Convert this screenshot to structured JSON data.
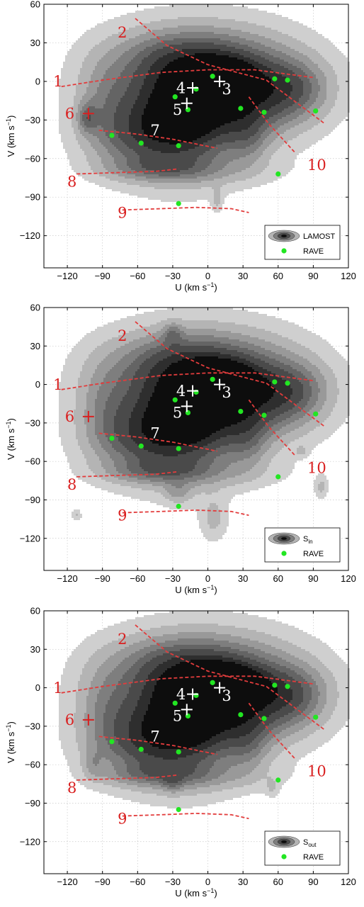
{
  "chart_data": [
    {
      "type": "contour",
      "xlabel": "U (km s",
      "xlabel_sup": "−1",
      "xlabel_close": ")",
      "ylabel": "V (km s",
      "ylabel_sup": "−1",
      "ylabel_close": ")",
      "xlim": [
        -140,
        120
      ],
      "ylim": [
        -145,
        60
      ],
      "xticks": [
        -120,
        -90,
        -60,
        -30,
        0,
        30,
        60,
        90,
        120
      ],
      "yticks": [
        -120,
        -90,
        -60,
        -30,
        0,
        30,
        60
      ],
      "grid": true,
      "legend": {
        "placement": "bottom-right",
        "contour_label": "LAMOST",
        "contour_sub": "",
        "point_label": "RAVE"
      },
      "contour_variant": 0
    },
    {
      "type": "contour",
      "xlabel": "U (km s",
      "xlabel_sup": "−1",
      "xlabel_close": ")",
      "ylabel": "V (km s",
      "ylabel_sup": "−1",
      "ylabel_close": ")",
      "xlim": [
        -140,
        120
      ],
      "ylim": [
        -145,
        60
      ],
      "xticks": [
        -120,
        -90,
        -60,
        -30,
        0,
        30,
        60,
        90,
        120
      ],
      "yticks": [
        -120,
        -90,
        -60,
        -30,
        0,
        30,
        60
      ],
      "grid": true,
      "legend": {
        "placement": "bottom-right",
        "contour_label": "S",
        "contour_sub": "in",
        "point_label": "RAVE"
      },
      "contour_variant": 1
    },
    {
      "type": "contour",
      "xlabel": "U (km s",
      "xlabel_sup": "−1",
      "xlabel_close": ")",
      "ylabel": "V (km s",
      "ylabel_sup": "−1",
      "ylabel_close": ")",
      "xlim": [
        -140,
        120
      ],
      "ylim": [
        -145,
        60
      ],
      "xticks": [
        -120,
        -90,
        -60,
        -30,
        0,
        30,
        60,
        90,
        120
      ],
      "yticks": [
        -120,
        -90,
        -60,
        -30,
        0,
        30,
        60
      ],
      "grid": true,
      "legend": {
        "placement": "bottom-right",
        "contour_label": "S",
        "contour_sub": "out",
        "point_label": "RAVE"
      },
      "contour_variant": 2
    }
  ],
  "rave_points": [
    {
      "u": -82,
      "v": -42
    },
    {
      "u": -57,
      "v": -48
    },
    {
      "u": -25,
      "v": -50
    },
    {
      "u": -28,
      "v": -12
    },
    {
      "u": -17,
      "v": -22
    },
    {
      "u": -10,
      "v": -6
    },
    {
      "u": 4,
      "v": 4
    },
    {
      "u": 28,
      "v": -21
    },
    {
      "u": 48,
      "v": -24
    },
    {
      "u": 57,
      "v": 2
    },
    {
      "u": 68,
      "v": 1
    },
    {
      "u": 92,
      "v": -23
    },
    {
      "u": 60,
      "v": -72
    },
    {
      "u": -25,
      "v": -95
    }
  ],
  "crosses": [
    {
      "u": -102,
      "v": -25
    },
    {
      "u": -18,
      "v": -17
    },
    {
      "u": -13,
      "v": -5
    },
    {
      "u": 10,
      "v": 0
    }
  ],
  "group_labels": [
    {
      "text": "1",
      "u": -128,
      "v": -1
    },
    {
      "text": "2",
      "u": -73,
      "v": 37
    },
    {
      "text": "3",
      "u": 16,
      "v": -7
    },
    {
      "text": "4",
      "u": -23,
      "v": -6
    },
    {
      "text": "5",
      "u": -26,
      "v": -23
    },
    {
      "text": "6",
      "u": -118,
      "v": -26
    },
    {
      "text": "7",
      "u": -45,
      "v": -39
    },
    {
      "text": "8",
      "u": -116,
      "v": -79
    },
    {
      "text": "9",
      "u": -73,
      "v": -103
    },
    {
      "text": "10",
      "u": 93,
      "v": -66
    }
  ],
  "trend_lines": [
    {
      "name": "1",
      "points": [
        [
          -125,
          -4
        ],
        [
          -90,
          1
        ],
        [
          -40,
          7
        ],
        [
          0,
          9
        ],
        [
          40,
          9
        ],
        [
          90,
          3
        ]
      ]
    },
    {
      "name": "2",
      "points": [
        [
          -62,
          49
        ],
        [
          -35,
          28
        ],
        [
          0,
          13
        ],
        [
          50,
          1
        ],
        [
          100,
          -33
        ]
      ]
    },
    {
      "name": "6-7",
      "points": [
        [
          -93,
          -38
        ],
        [
          -60,
          -41
        ],
        [
          -30,
          -45
        ],
        [
          8,
          -52
        ]
      ]
    },
    {
      "name": "8",
      "points": [
        [
          -112,
          -72
        ],
        [
          -80,
          -71
        ],
        [
          -45,
          -70
        ],
        [
          -25,
          -68
        ]
      ]
    },
    {
      "name": "9",
      "points": [
        [
          -73,
          -100
        ],
        [
          -40,
          -99
        ],
        [
          -10,
          -98
        ],
        [
          20,
          -99
        ],
        [
          35,
          -102
        ]
      ]
    },
    {
      "name": "10",
      "points": [
        [
          35,
          -12
        ],
        [
          52,
          -33
        ],
        [
          62,
          -43
        ],
        [
          75,
          -56
        ]
      ]
    }
  ],
  "colors": {
    "contour_levels": [
      "#cfcfcf",
      "#b4b4b4",
      "#999999",
      "#7e7e7e",
      "#646464",
      "#4a4a4a",
      "#2e2e2e",
      "#0d0d0d"
    ],
    "rave": "#22e622",
    "trend_line": "#e23c3c",
    "group_label_red": "#d92020",
    "group_label_white": "#ffffff"
  }
}
